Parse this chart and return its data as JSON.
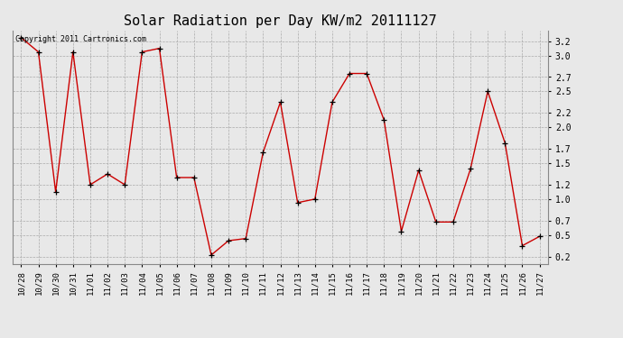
{
  "title": "Solar Radiation per Day KW/m2 20111127",
  "copyright_text": "Copyright 2011 Cartronics.com",
  "labels": [
    "10/28",
    "10/29",
    "10/30",
    "10/31",
    "11/01",
    "11/02",
    "11/03",
    "11/04",
    "11/05",
    "11/06",
    "11/07",
    "11/08",
    "11/09",
    "11/10",
    "11/11",
    "11/12",
    "11/13",
    "11/14",
    "11/15",
    "11/16",
    "11/17",
    "11/18",
    "11/19",
    "11/20",
    "11/21",
    "11/22",
    "11/23",
    "11/24",
    "11/25",
    "11/26",
    "11/27"
  ],
  "values": [
    3.25,
    3.05,
    1.1,
    3.05,
    1.2,
    1.35,
    1.2,
    3.05,
    3.1,
    1.3,
    1.3,
    0.22,
    0.42,
    0.45,
    1.65,
    2.35,
    0.95,
    1.0,
    2.35,
    2.75,
    2.75,
    2.1,
    0.55,
    1.4,
    0.68,
    0.68,
    1.42,
    2.5,
    1.78,
    0.35,
    0.48
  ],
  "line_color": "#cc0000",
  "marker": "+",
  "marker_color": "#000000",
  "marker_size": 4,
  "bg_color": "#e8e8e8",
  "plot_bg_color": "#e8e8e8",
  "grid_color": "#aaaaaa",
  "ylim": [
    0.1,
    3.35
  ],
  "yticks": [
    0.2,
    0.5,
    0.7,
    1.0,
    1.2,
    1.5,
    1.7,
    2.0,
    2.2,
    2.5,
    2.7,
    3.0,
    3.2
  ],
  "title_fontsize": 11,
  "tick_fontsize": 6.5,
  "copyright_fontsize": 6
}
